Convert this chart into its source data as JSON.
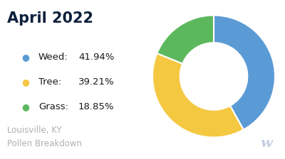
{
  "title": "April 2022",
  "title_color": "#0d1f3c",
  "subtitle": "Louisville, KY\nPollen Breakdown",
  "subtitle_color": "#b0b0b0",
  "slices": [
    41.94,
    39.21,
    18.85
  ],
  "labels": [
    "Weed",
    "Tree",
    "Grass"
  ],
  "percentages": [
    "41.94%",
    "39.21%",
    "18.85%"
  ],
  "colors": [
    "#5b9bd5",
    "#f5c842",
    "#5cb85c"
  ],
  "background_color": "#ffffff",
  "donut_hole": 0.55,
  "startangle": 90,
  "legend_fontsize": 9.5,
  "title_fontsize": 15,
  "subtitle_fontsize": 8.5
}
